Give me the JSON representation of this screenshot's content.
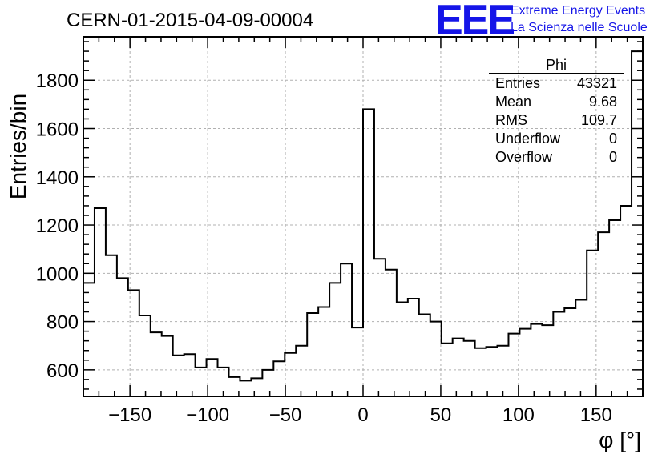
{
  "chart_data": {
    "type": "histogram",
    "title": "CERN-01-2015-04-09-00004",
    "xlabel": "φ [°]",
    "ylabel": "Entries/bin",
    "xlim": [
      -180,
      180
    ],
    "ylim": [
      490,
      1980
    ],
    "grid": true,
    "x_ticks": [
      -150,
      -100,
      -50,
      0,
      50,
      100,
      150
    ],
    "y_ticks": [
      600,
      800,
      1000,
      1200,
      1400,
      1600,
      1800
    ],
    "bin_width": 7.2,
    "bin_start": -180,
    "values": [
      960,
      1270,
      1075,
      980,
      930,
      825,
      755,
      740,
      660,
      665,
      610,
      645,
      610,
      570,
      555,
      565,
      600,
      635,
      670,
      700,
      835,
      860,
      960,
      1040,
      775,
      1680,
      1060,
      1015,
      880,
      895,
      830,
      800,
      710,
      730,
      720,
      690,
      695,
      700,
      750,
      770,
      790,
      785,
      840,
      855,
      890,
      1095,
      1170,
      1220,
      1280,
      1920
    ]
  },
  "stats_box": {
    "name": "Phi",
    "rows": [
      {
        "label": "Entries",
        "value": "43321"
      },
      {
        "label": "Mean",
        "value": "9.68"
      },
      {
        "label": "RMS",
        "value": "109.7"
      },
      {
        "label": "Underflow",
        "value": "0"
      },
      {
        "label": "Overflow",
        "value": "0"
      }
    ]
  },
  "logo": {
    "mark": "EEE",
    "line1": "Extreme Energy Events",
    "line2": "La Scienza nelle Scuole"
  },
  "colors": {
    "line": "#000000",
    "grid": "#b0b0b0",
    "logo": "#1515e8"
  }
}
